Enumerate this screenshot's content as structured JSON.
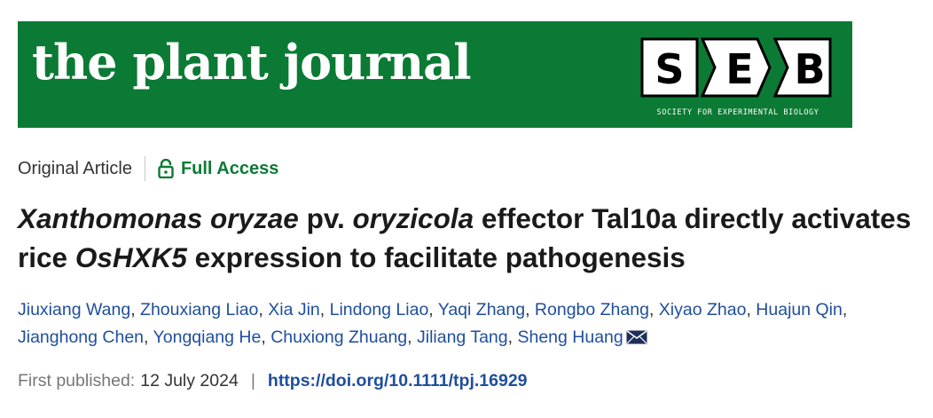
{
  "header": {
    "journal_name": "the plant journal",
    "society_logo_text": "SOCIETY FOR EXPERIMENTAL BIOLOGY",
    "society_letters": [
      "S",
      "E",
      "B"
    ],
    "brand_color": "#0b7a34"
  },
  "meta": {
    "article_type": "Original Article",
    "access_icon": "unlock-icon",
    "access_label": "Full Access"
  },
  "title": {
    "part1_italic": "Xanthomonas oryzae",
    "part2": " pv. ",
    "part3_italic": "oryzicola",
    "part4": " effector Tal10a directly activates rice ",
    "part5_italic": "OsHXK5",
    "part6": " expression to facilitate pathogenesis"
  },
  "authors": [
    "Jiuxiang Wang",
    "Zhouxiang Liao",
    "Xia Jin",
    "Lindong Liao",
    "Yaqi Zhang",
    "Rongbo Zhang",
    "Xiyao Zhao",
    "Huajun Qin",
    "Jianghong Chen",
    "Yongqiang He",
    "Chuxiong Zhuang",
    "Jiliang Tang",
    "Sheng Huang"
  ],
  "corresponding_icon": "envelope-icon",
  "publication": {
    "label": "First published:",
    "date": "12 July 2024",
    "separator": "|",
    "doi": "https://doi.org/10.1111/tpj.16929"
  },
  "colors": {
    "link": "#1f4e9c",
    "access": "#0b7a34"
  }
}
